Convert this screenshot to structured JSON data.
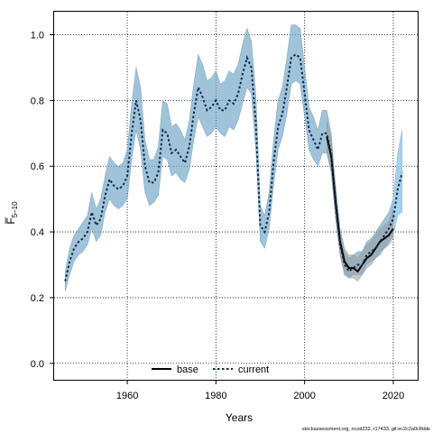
{
  "chart_data": {
    "type": "line",
    "title": "",
    "xlabel": "Years",
    "ylabel": "F̅",
    "ylabel_subscript": "5–10",
    "xlim": [
      1943.5,
      2025.5
    ],
    "ylim": [
      -0.05,
      1.07
    ],
    "x_ticks": [
      1960,
      1980,
      2000,
      2020
    ],
    "y_ticks": [
      0.0,
      0.2,
      0.4,
      0.6,
      0.8,
      1.0
    ],
    "y_tick_labels": [
      "0.0",
      "0.2",
      "0.4",
      "0.6",
      "0.8",
      "1.0"
    ],
    "grid": true,
    "legend_position": "bottom-center",
    "series": [
      {
        "name": "base",
        "color": "#000000",
        "band_color": "#9a9a9a",
        "x": [
          2005,
          2006,
          2007,
          2008,
          2009,
          2010,
          2011,
          2012,
          2013,
          2014,
          2015,
          2016,
          2017,
          2018,
          2019,
          2020
        ],
        "values": [
          0.69,
          0.63,
          0.49,
          0.37,
          0.31,
          0.29,
          0.29,
          0.28,
          0.3,
          0.32,
          0.33,
          0.35,
          0.37,
          0.38,
          0.39,
          0.41
        ],
        "lower": [
          0.64,
          0.58,
          0.44,
          0.33,
          0.27,
          0.26,
          0.26,
          0.25,
          0.27,
          0.29,
          0.3,
          0.32,
          0.34,
          0.35,
          0.36,
          0.38
        ],
        "upper": [
          0.74,
          0.68,
          0.54,
          0.41,
          0.35,
          0.33,
          0.33,
          0.32,
          0.34,
          0.36,
          0.37,
          0.39,
          0.41,
          0.42,
          0.43,
          0.47
        ]
      },
      {
        "name": "current",
        "color": "#1f5f8b",
        "band_color": "#6fa3c4",
        "x": [
          1946,
          1947,
          1948,
          1949,
          1950,
          1951,
          1952,
          1953,
          1954,
          1955,
          1956,
          1957,
          1958,
          1959,
          1960,
          1961,
          1962,
          1963,
          1964,
          1965,
          1966,
          1967,
          1968,
          1969,
          1970,
          1971,
          1972,
          1973,
          1974,
          1975,
          1976,
          1977,
          1978,
          1979,
          1980,
          1981,
          1982,
          1983,
          1984,
          1985,
          1986,
          1987,
          1988,
          1989,
          1990,
          1991,
          1992,
          1993,
          1994,
          1995,
          1996,
          1997,
          1998,
          1999,
          2000,
          2001,
          2002,
          2003,
          2004,
          2005,
          2006,
          2007,
          2008,
          2009,
          2010,
          2011,
          2012,
          2013,
          2014,
          2015,
          2016,
          2017,
          2018,
          2019,
          2020,
          2021,
          2022
        ],
        "values": [
          0.25,
          0.31,
          0.35,
          0.37,
          0.38,
          0.4,
          0.46,
          0.42,
          0.44,
          0.51,
          0.56,
          0.54,
          0.53,
          0.54,
          0.57,
          0.7,
          0.8,
          0.74,
          0.6,
          0.55,
          0.55,
          0.58,
          0.71,
          0.7,
          0.64,
          0.65,
          0.63,
          0.61,
          0.66,
          0.76,
          0.84,
          0.81,
          0.77,
          0.78,
          0.8,
          0.77,
          0.77,
          0.8,
          0.79,
          0.82,
          0.88,
          0.93,
          0.9,
          0.73,
          0.42,
          0.4,
          0.46,
          0.61,
          0.72,
          0.76,
          0.84,
          0.93,
          0.94,
          0.93,
          0.82,
          0.71,
          0.68,
          0.65,
          0.7,
          0.7,
          0.64,
          0.48,
          0.36,
          0.3,
          0.28,
          0.29,
          0.3,
          0.3,
          0.33,
          0.34,
          0.35,
          0.37,
          0.39,
          0.41,
          0.44,
          0.53,
          0.58
        ],
        "lower": [
          0.22,
          0.27,
          0.31,
          0.33,
          0.34,
          0.36,
          0.41,
          0.37,
          0.39,
          0.46,
          0.5,
          0.48,
          0.47,
          0.48,
          0.5,
          0.62,
          0.71,
          0.65,
          0.52,
          0.48,
          0.49,
          0.51,
          0.63,
          0.62,
          0.57,
          0.58,
          0.56,
          0.55,
          0.59,
          0.68,
          0.75,
          0.72,
          0.69,
          0.7,
          0.72,
          0.7,
          0.69,
          0.72,
          0.71,
          0.74,
          0.79,
          0.84,
          0.82,
          0.65,
          0.37,
          0.35,
          0.41,
          0.54,
          0.65,
          0.69,
          0.76,
          0.85,
          0.86,
          0.85,
          0.75,
          0.65,
          0.62,
          0.6,
          0.64,
          0.64,
          0.59,
          0.44,
          0.33,
          0.27,
          0.26,
          0.27,
          0.27,
          0.27,
          0.3,
          0.31,
          0.32,
          0.33,
          0.35,
          0.37,
          0.39,
          0.45,
          0.46
        ],
        "upper": [
          0.28,
          0.35,
          0.39,
          0.41,
          0.43,
          0.45,
          0.52,
          0.47,
          0.5,
          0.57,
          0.63,
          0.61,
          0.6,
          0.61,
          0.65,
          0.79,
          0.9,
          0.84,
          0.68,
          0.62,
          0.62,
          0.66,
          0.8,
          0.79,
          0.72,
          0.73,
          0.71,
          0.68,
          0.74,
          0.85,
          0.94,
          0.91,
          0.86,
          0.87,
          0.89,
          0.85,
          0.86,
          0.89,
          0.88,
          0.91,
          0.97,
          1.02,
          0.98,
          0.82,
          0.48,
          0.45,
          0.52,
          0.68,
          0.8,
          0.84,
          0.93,
          1.03,
          1.03,
          1.02,
          0.9,
          0.78,
          0.75,
          0.71,
          0.77,
          0.77,
          0.7,
          0.53,
          0.4,
          0.34,
          0.32,
          0.33,
          0.34,
          0.34,
          0.37,
          0.38,
          0.4,
          0.42,
          0.44,
          0.46,
          0.5,
          0.64,
          0.71
        ]
      }
    ]
  },
  "footer": {
    "text": "stockassessment.org, ncod232, r17433, git:ec2c2a0c8dde"
  }
}
